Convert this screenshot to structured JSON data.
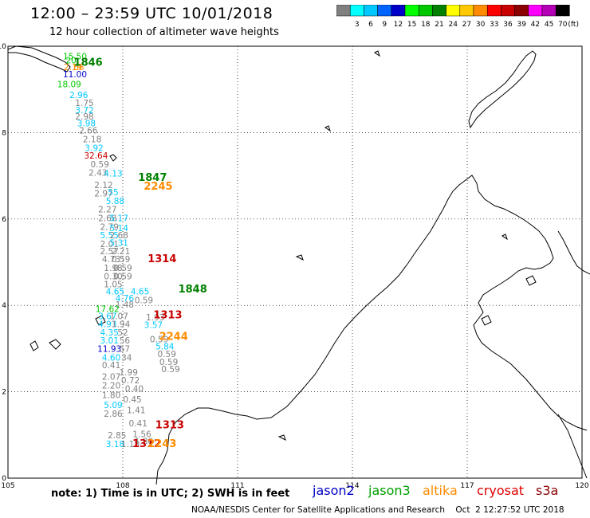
{
  "header": {
    "title": "12:00 – 23:59 UTC 10/01/2018",
    "subtitle": "12 hour collection of altimeter wave heights"
  },
  "colorbar": {
    "unit_label": "(ft)",
    "bins": [
      {
        "color": "#808080",
        "label": ""
      },
      {
        "color": "#00ffff",
        "label": "3"
      },
      {
        "color": "#00c8ff",
        "label": "6"
      },
      {
        "color": "#0064ff",
        "label": "9"
      },
      {
        "color": "#0000c8",
        "label": "12"
      },
      {
        "color": "#00ff00",
        "label": "15"
      },
      {
        "color": "#00c800",
        "label": "18"
      },
      {
        "color": "#008000",
        "label": "21"
      },
      {
        "color": "#ffff00",
        "label": "24"
      },
      {
        "color": "#ffc800",
        "label": "27"
      },
      {
        "color": "#ff8c00",
        "label": "30"
      },
      {
        "color": "#ff0000",
        "label": "33"
      },
      {
        "color": "#c80000",
        "label": "36"
      },
      {
        "color": "#8b0000",
        "label": "39"
      },
      {
        "color": "#ff00ff",
        "label": "42"
      },
      {
        "color": "#b400b4",
        "label": "45"
      },
      {
        "color": "#000000",
        "label": "70"
      }
    ]
  },
  "axes": {
    "x_ticks": [
      "105",
      "108",
      "111",
      "114",
      "117",
      "120"
    ],
    "y_ticks": [
      "0",
      "2",
      "4",
      "6",
      "8",
      "10"
    ]
  },
  "observations": [
    {
      "lon": 106.75,
      "lat": 9.7,
      "text": "15.50",
      "color": "#00c800"
    },
    {
      "lon": 106.65,
      "lat": 9.6,
      "text": "20",
      "color": "#00c800"
    },
    {
      "lon": 106.7,
      "lat": 9.45,
      "text": "2.19",
      "color": "#ff8c00"
    },
    {
      "lon": 106.85,
      "lat": 9.45,
      "text": "66",
      "color": "#ff8c00"
    },
    {
      "lon": 106.75,
      "lat": 9.28,
      "text": "11.00",
      "color": "#0000c8"
    },
    {
      "lon": 106.6,
      "lat": 9.05,
      "text": "18.09",
      "color": "#00c800"
    },
    {
      "lon": 106.85,
      "lat": 8.8,
      "text": "2.96",
      "color": "#00c8ff"
    },
    {
      "lon": 107.0,
      "lat": 8.62,
      "text": "1.75",
      "color": "#808080"
    },
    {
      "lon": 107.0,
      "lat": 8.45,
      "text": "3.72",
      "color": "#00c8ff"
    },
    {
      "lon": 107.0,
      "lat": 8.3,
      "text": "2.98",
      "color": "#808080"
    },
    {
      "lon": 107.05,
      "lat": 8.15,
      "text": "3.98",
      "color": "#00c8ff"
    },
    {
      "lon": 107.1,
      "lat": 7.98,
      "text": "2.66",
      "color": "#808080"
    },
    {
      "lon": 107.2,
      "lat": 7.78,
      "text": "2.18",
      "color": "#808080"
    },
    {
      "lon": 107.25,
      "lat": 7.57,
      "text": "3.92",
      "color": "#00c8ff"
    },
    {
      "lon": 107.3,
      "lat": 7.4,
      "text": "32.64",
      "color": "#c80000"
    },
    {
      "lon": 107.4,
      "lat": 7.2,
      "text": "0.59",
      "color": "#808080"
    },
    {
      "lon": 107.35,
      "lat": 7.0,
      "text": "2.43",
      "color": "#808080"
    },
    {
      "lon": 107.75,
      "lat": 6.98,
      "text": "4.13",
      "color": "#00c8ff"
    },
    {
      "lon": 107.5,
      "lat": 6.72,
      "text": "2.12",
      "color": "#808080"
    },
    {
      "lon": 107.5,
      "lat": 6.52,
      "text": "2.97",
      "color": "#808080"
    },
    {
      "lon": 107.75,
      "lat": 6.55,
      "text": "55",
      "color": "#00c8ff"
    },
    {
      "lon": 107.8,
      "lat": 6.35,
      "text": "5.88",
      "color": "#00c8ff"
    },
    {
      "lon": 107.6,
      "lat": 6.15,
      "text": "2.27",
      "color": "#808080"
    },
    {
      "lon": 107.6,
      "lat": 5.95,
      "text": "2.68",
      "color": "#808080"
    },
    {
      "lon": 107.9,
      "lat": 5.95,
      "text": "5.17",
      "color": "#00c8ff"
    },
    {
      "lon": 107.65,
      "lat": 5.75,
      "text": "2.79",
      "color": "#808080"
    },
    {
      "lon": 107.9,
      "lat": 5.72,
      "text": "5.14",
      "color": "#00c8ff"
    },
    {
      "lon": 107.65,
      "lat": 5.55,
      "text": "5.55",
      "color": "#00c8ff"
    },
    {
      "lon": 107.9,
      "lat": 5.55,
      "text": "2.68",
      "color": "#808080"
    },
    {
      "lon": 107.65,
      "lat": 5.35,
      "text": "2.01",
      "color": "#808080"
    },
    {
      "lon": 107.9,
      "lat": 5.38,
      "text": "5.31",
      "color": "#00c8ff"
    },
    {
      "lon": 107.65,
      "lat": 5.18,
      "text": "2.57",
      "color": "#808080"
    },
    {
      "lon": 107.95,
      "lat": 5.18,
      "text": "2.21",
      "color": "#808080"
    },
    {
      "lon": 107.7,
      "lat": 5.0,
      "text": "4.73",
      "color": "#808080"
    },
    {
      "lon": 107.95,
      "lat": 5.0,
      "text": "0.59",
      "color": "#808080"
    },
    {
      "lon": 107.75,
      "lat": 4.8,
      "text": "1.98",
      "color": "#808080"
    },
    {
      "lon": 108.0,
      "lat": 4.8,
      "text": "0.59",
      "color": "#808080"
    },
    {
      "lon": 107.75,
      "lat": 4.6,
      "text": "0.30",
      "color": "#808080"
    },
    {
      "lon": 108.0,
      "lat": 4.6,
      "text": "0.59",
      "color": "#808080"
    },
    {
      "lon": 107.75,
      "lat": 4.42,
      "text": "1.05",
      "color": "#808080"
    },
    {
      "lon": 107.8,
      "lat": 4.25,
      "text": "4.65",
      "color": "#00c8ff"
    },
    {
      "lon": 108.45,
      "lat": 4.25,
      "text": "4.65",
      "color": "#00c8ff"
    },
    {
      "lon": 108.05,
      "lat": 4.1,
      "text": "4.76",
      "color": "#00c8ff"
    },
    {
      "lon": 108.55,
      "lat": 4.05,
      "text": "0.59",
      "color": "#808080"
    },
    {
      "lon": 108.05,
      "lat": 3.95,
      "text": "1.48",
      "color": "#808080"
    },
    {
      "lon": 107.6,
      "lat": 3.85,
      "text": "17.62",
      "color": "#00c800"
    },
    {
      "lon": 107.6,
      "lat": 3.68,
      "text": "3.67",
      "color": "#00c8ff"
    },
    {
      "lon": 107.9,
      "lat": 3.68,
      "text": "1.07",
      "color": "#808080"
    },
    {
      "lon": 108.85,
      "lat": 3.65,
      "text": "1.93",
      "color": "#808080"
    },
    {
      "lon": 107.6,
      "lat": 3.5,
      "text": "4.93",
      "color": "#00c8ff"
    },
    {
      "lon": 107.95,
      "lat": 3.5,
      "text": "1.94",
      "color": "#808080"
    },
    {
      "lon": 108.8,
      "lat": 3.48,
      "text": "3.57",
      "color": "#00c8ff"
    },
    {
      "lon": 107.65,
      "lat": 3.3,
      "text": "4.35",
      "color": "#00c8ff"
    },
    {
      "lon": 108.0,
      "lat": 3.3,
      "text": "52",
      "color": "#808080"
    },
    {
      "lon": 108.95,
      "lat": 3.15,
      "text": "0.59",
      "color": "#808080"
    },
    {
      "lon": 107.65,
      "lat": 3.12,
      "text": "3.01",
      "color": "#00c8ff"
    },
    {
      "lon": 108.05,
      "lat": 3.12,
      "text": "56",
      "color": "#808080"
    },
    {
      "lon": 109.1,
      "lat": 2.98,
      "text": "5.84",
      "color": "#00c8ff"
    },
    {
      "lon": 107.65,
      "lat": 2.92,
      "text": "11.93",
      "color": "#0000c8"
    },
    {
      "lon": 108.05,
      "lat": 2.92,
      "text": "57",
      "color": "#808080"
    },
    {
      "lon": 109.15,
      "lat": 2.8,
      "text": "0.59",
      "color": "#808080"
    },
    {
      "lon": 107.7,
      "lat": 2.72,
      "text": "4.60",
      "color": "#00c8ff"
    },
    {
      "lon": 108.1,
      "lat": 2.72,
      "text": "34",
      "color": "#808080"
    },
    {
      "lon": 109.2,
      "lat": 2.62,
      "text": "0.59",
      "color": "#808080"
    },
    {
      "lon": 107.7,
      "lat": 2.55,
      "text": "0.41",
      "color": "#808080"
    },
    {
      "lon": 108.15,
      "lat": 2.38,
      "text": "1.99",
      "color": "#808080"
    },
    {
      "lon": 109.25,
      "lat": 2.45,
      "text": "0.59",
      "color": "#808080"
    },
    {
      "lon": 107.7,
      "lat": 2.28,
      "text": "2.07",
      "color": "#808080"
    },
    {
      "lon": 108.2,
      "lat": 2.2,
      "text": "0.72",
      "color": "#808080"
    },
    {
      "lon": 107.7,
      "lat": 2.08,
      "text": "2.20",
      "color": "#808080"
    },
    {
      "lon": 108.3,
      "lat": 2.0,
      "text": "0.40",
      "color": "#808080"
    },
    {
      "lon": 107.7,
      "lat": 1.85,
      "text": "1.80",
      "color": "#808080"
    },
    {
      "lon": 108.25,
      "lat": 1.75,
      "text": "0.45",
      "color": "#808080"
    },
    {
      "lon": 107.75,
      "lat": 1.62,
      "text": "5.09",
      "color": "#00c8ff"
    },
    {
      "lon": 107.75,
      "lat": 1.42,
      "text": "2.86",
      "color": "#808080"
    },
    {
      "lon": 108.35,
      "lat": 1.5,
      "text": "1.41",
      "color": "#808080"
    },
    {
      "lon": 108.4,
      "lat": 1.2,
      "text": "0.41",
      "color": "#808080"
    },
    {
      "lon": 107.85,
      "lat": 0.92,
      "text": "2.85",
      "color": "#808080"
    },
    {
      "lon": 108.5,
      "lat": 0.95,
      "text": "1.56",
      "color": "#808080"
    },
    {
      "lon": 107.8,
      "lat": 0.72,
      "text": "3.18",
      "color": "#00c8ff"
    },
    {
      "lon": 108.2,
      "lat": 0.72,
      "text": "1.13",
      "color": "#808080"
    },
    {
      "lon": 108.55,
      "lat": 0.78,
      "text": "1.86",
      "color": "#808080"
    }
  ],
  "time_labels": [
    {
      "lon": 106.72,
      "lat": 9.55,
      "text": "1846",
      "color": "#008000"
    },
    {
      "lon": 108.4,
      "lat": 6.88,
      "text": "1847",
      "color": "#008000"
    },
    {
      "lon": 108.55,
      "lat": 6.68,
      "text": "2245",
      "color": "#ff8c00"
    },
    {
      "lon": 108.65,
      "lat": 5.0,
      "text": "1314",
      "color": "#c80000"
    },
    {
      "lon": 108.8,
      "lat": 3.7,
      "text": "1313",
      "color": "#c80000"
    },
    {
      "lon": 109.45,
      "lat": 4.3,
      "text": "1848",
      "color": "#008000"
    },
    {
      "lon": 108.95,
      "lat": 3.2,
      "text": "2244",
      "color": "#ff8c00"
    },
    {
      "lon": 108.85,
      "lat": 1.15,
      "text": "1313",
      "color": "#c80000"
    },
    {
      "lon": 108.25,
      "lat": 0.72,
      "text": "1312",
      "color": "#c80000"
    },
    {
      "lon": 108.65,
      "lat": 0.72,
      "text": "2243",
      "color": "#ff8c00"
    }
  ],
  "legend": {
    "note": "note: 1) Time is in UTC; 2) SWH is in feet",
    "satellites": [
      {
        "name": "jason2",
        "color": "#0000c8"
      },
      {
        "name": "jason3",
        "color": "#00a000"
      },
      {
        "name": "altika",
        "color": "#ff8c00"
      },
      {
        "name": "cryosat",
        "color": "#e00000"
      },
      {
        "name": "s3a",
        "color": "#8b0000"
      }
    ]
  },
  "footer": "NOAA/NESDIS Center for Satellite Applications and Research    Oct  2 12:27:52 UTC 2018"
}
